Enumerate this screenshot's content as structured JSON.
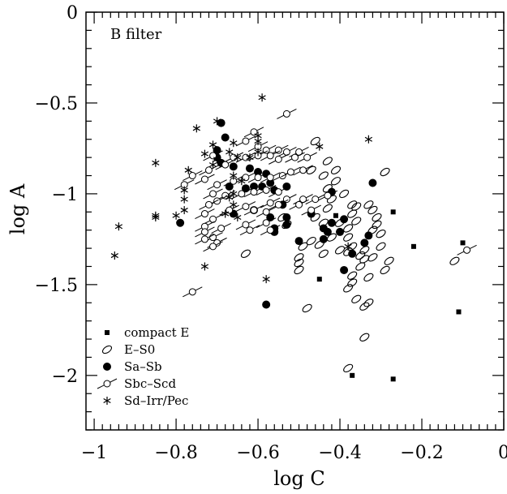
{
  "chart_data": {
    "type": "scatter",
    "title": "",
    "panel_label": "B filter",
    "xlabel": "log C",
    "ylabel": "log A",
    "xlim": [
      -1.02,
      0.0
    ],
    "ylim": [
      -2.3,
      0.0
    ],
    "xticks": [
      -1,
      -0.8,
      -0.6,
      -0.4,
      -0.2,
      0
    ],
    "xtick_labels": [
      "−1",
      "−0.8",
      "−0.6",
      "−0.4",
      "−0.2",
      "0"
    ],
    "yticks": [
      0,
      -0.5,
      -1,
      -1.5,
      -2
    ],
    "ytick_labels": [
      "0",
      "−0.5",
      "−1",
      "−1.5",
      "−2"
    ],
    "legend_position": "bottom-left",
    "series": [
      {
        "name": "compact E",
        "marker": "filled-square",
        "points": [
          [
            -0.27,
            -1.1
          ],
          [
            -0.22,
            -1.29
          ],
          [
            -0.1,
            -1.27
          ],
          [
            -0.11,
            -1.65
          ],
          [
            -0.27,
            -2.02
          ],
          [
            -0.37,
            -2.0
          ],
          [
            -0.45,
            -1.47
          ],
          [
            -0.41,
            -1.12
          ]
        ]
      },
      {
        "name": "E–S0",
        "marker": "open-ellipse",
        "points": [
          [
            -0.46,
            -0.71
          ],
          [
            -0.43,
            -0.82
          ],
          [
            -0.41,
            -0.87
          ],
          [
            -0.41,
            -0.93
          ],
          [
            -0.39,
            -1.0
          ],
          [
            -0.37,
            -1.06
          ],
          [
            -0.36,
            -1.07
          ],
          [
            -0.37,
            -1.11
          ],
          [
            -0.36,
            -1.15
          ],
          [
            -0.38,
            -1.19
          ],
          [
            -0.38,
            -1.24
          ],
          [
            -0.37,
            -1.29
          ],
          [
            -0.38,
            -1.32
          ],
          [
            -0.35,
            -1.34
          ],
          [
            -0.34,
            -1.36
          ],
          [
            -0.35,
            -1.4
          ],
          [
            -0.37,
            -1.45
          ],
          [
            -0.37,
            -1.49
          ],
          [
            -0.38,
            -1.52
          ],
          [
            -0.33,
            -1.06
          ],
          [
            -0.32,
            -1.09
          ],
          [
            -0.31,
            -1.13
          ],
          [
            -0.31,
            -1.17
          ],
          [
            -0.32,
            -1.2
          ],
          [
            -0.3,
            -1.22
          ],
          [
            -0.3,
            -1.29
          ],
          [
            -0.34,
            -1.31
          ],
          [
            -0.32,
            -1.35
          ],
          [
            -0.28,
            -1.37
          ],
          [
            -0.29,
            -1.42
          ],
          [
            -0.33,
            -1.46
          ],
          [
            -0.36,
            -1.58
          ],
          [
            -0.34,
            -1.62
          ],
          [
            -0.33,
            -1.6
          ],
          [
            -0.34,
            -1.79
          ],
          [
            -0.38,
            -1.96
          ],
          [
            -0.29,
            -0.88
          ],
          [
            -0.44,
            -0.9
          ],
          [
            -0.47,
            -0.87
          ],
          [
            -0.43,
            -0.97
          ],
          [
            -0.42,
            -1.03
          ],
          [
            -0.43,
            -1.08
          ],
          [
            -0.46,
            -1.13
          ],
          [
            -0.44,
            -1.16
          ],
          [
            -0.42,
            -1.24
          ],
          [
            -0.47,
            -1.26
          ],
          [
            -0.45,
            -1.28
          ],
          [
            -0.49,
            -1.29
          ],
          [
            -0.44,
            -1.33
          ],
          [
            -0.5,
            -1.35
          ],
          [
            -0.5,
            -1.38
          ],
          [
            -0.5,
            -1.42
          ],
          [
            -0.48,
            -1.63
          ],
          [
            -0.54,
            -1.13
          ],
          [
            -0.63,
            -1.33
          ],
          [
            -0.53,
            -1.17
          ],
          [
            -0.4,
            -1.16
          ],
          [
            -0.4,
            -1.31
          ],
          [
            -0.12,
            -1.37
          ]
        ]
      },
      {
        "name": "Sa–Sb",
        "marker": "filled-circle",
        "points": [
          [
            -0.69,
            -0.61
          ],
          [
            -0.68,
            -0.69
          ],
          [
            -0.7,
            -0.76
          ],
          [
            -0.7,
            -0.8
          ],
          [
            -0.69,
            -0.83
          ],
          [
            -0.66,
            -0.85
          ],
          [
            -0.62,
            -0.86
          ],
          [
            -0.6,
            -0.88
          ],
          [
            -0.58,
            -0.89
          ],
          [
            -0.57,
            -0.94
          ],
          [
            -0.61,
            -0.96
          ],
          [
            -0.59,
            -0.96
          ],
          [
            -0.53,
            -0.96
          ],
          [
            -0.56,
            -0.98
          ],
          [
            -0.67,
            -0.96
          ],
          [
            -0.63,
            -0.97
          ],
          [
            -0.42,
            -0.99
          ],
          [
            -0.57,
            -1.13
          ],
          [
            -0.56,
            -1.19
          ],
          [
            -0.56,
            -1.21
          ],
          [
            -0.53,
            -1.13
          ],
          [
            -0.47,
            -1.11
          ],
          [
            -0.42,
            -1.16
          ],
          [
            -0.44,
            -1.19
          ],
          [
            -0.43,
            -1.21
          ],
          [
            -0.5,
            -1.26
          ],
          [
            -0.53,
            -1.17
          ],
          [
            -0.39,
            -1.14
          ],
          [
            -0.4,
            -1.21
          ],
          [
            -0.37,
            -1.33
          ],
          [
            -0.33,
            -1.23
          ],
          [
            -0.34,
            -1.27
          ],
          [
            -0.39,
            -1.42
          ],
          [
            -0.44,
            -1.25
          ],
          [
            -0.58,
            -1.61
          ],
          [
            -0.79,
            -1.16
          ],
          [
            -0.32,
            -0.94
          ],
          [
            -0.66,
            -1.11
          ],
          [
            -0.61,
            -1.09
          ],
          [
            -0.54,
            -1.06
          ]
        ]
      },
      {
        "name": "Sbc–Scd",
        "marker": "open-circle-slash",
        "points": [
          [
            -0.53,
            -0.56
          ],
          [
            -0.61,
            -0.66
          ],
          [
            -0.63,
            -0.71
          ],
          [
            -0.6,
            -0.74
          ],
          [
            -0.58,
            -0.76
          ],
          [
            -0.55,
            -0.76
          ],
          [
            -0.53,
            -0.77
          ],
          [
            -0.5,
            -0.77
          ],
          [
            -0.71,
            -0.79
          ],
          [
            -0.66,
            -0.8
          ],
          [
            -0.63,
            -0.8
          ],
          [
            -0.6,
            -0.79
          ],
          [
            -0.57,
            -0.79
          ],
          [
            -0.55,
            -0.81
          ],
          [
            -0.51,
            -0.8
          ],
          [
            -0.48,
            -0.8
          ],
          [
            -0.68,
            -0.84
          ],
          [
            -0.72,
            -0.87
          ],
          [
            -0.76,
            -0.9
          ],
          [
            -0.73,
            -0.92
          ],
          [
            -0.78,
            -0.95
          ],
          [
            -0.7,
            -0.95
          ],
          [
            -0.66,
            -0.93
          ],
          [
            -0.63,
            -0.91
          ],
          [
            -0.6,
            -0.91
          ],
          [
            -0.57,
            -0.91
          ],
          [
            -0.54,
            -0.9
          ],
          [
            -0.52,
            -0.88
          ],
          [
            -0.49,
            -0.87
          ],
          [
            -0.71,
            -1.0
          ],
          [
            -0.68,
            -1.01
          ],
          [
            -0.64,
            -1.0
          ],
          [
            -0.61,
            -0.99
          ],
          [
            -0.58,
            -0.98
          ],
          [
            -0.55,
            -0.99
          ],
          [
            -0.53,
            -1.03
          ],
          [
            -0.49,
            -1.03
          ],
          [
            -0.46,
            -1.03
          ],
          [
            -0.43,
            -1.01
          ],
          [
            -0.7,
            -1.04
          ],
          [
            -0.72,
            -1.06
          ],
          [
            -0.73,
            -1.11
          ],
          [
            -0.71,
            -1.14
          ],
          [
            -0.73,
            -1.18
          ],
          [
            -0.69,
            -1.19
          ],
          [
            -0.73,
            -1.21
          ],
          [
            -0.71,
            -1.24
          ],
          [
            -0.73,
            -1.25
          ],
          [
            -0.7,
            -1.27
          ],
          [
            -0.71,
            -1.29
          ],
          [
            -0.67,
            -1.09
          ],
          [
            -0.63,
            -1.07
          ],
          [
            -0.57,
            -1.05
          ],
          [
            -0.55,
            -1.06
          ],
          [
            -0.5,
            -1.06
          ],
          [
            -0.47,
            -1.09
          ],
          [
            -0.63,
            -1.17
          ],
          [
            -0.58,
            -1.16
          ],
          [
            -0.62,
            -1.2
          ],
          [
            -0.57,
            -1.2
          ],
          [
            -0.61,
            -1.09
          ],
          [
            -0.58,
            -1.1
          ],
          [
            -0.76,
            -1.54
          ],
          [
            -0.09,
            -1.31
          ]
        ]
      },
      {
        "name": "Sd–Irr/Pec",
        "marker": "asterisk",
        "points": [
          [
            -0.59,
            -0.47
          ],
          [
            -0.75,
            -0.64
          ],
          [
            -0.6,
            -0.68
          ],
          [
            -0.6,
            -0.71
          ],
          [
            -0.71,
            -0.73
          ],
          [
            -0.66,
            -0.72
          ],
          [
            -0.67,
            -0.77
          ],
          [
            -0.6,
            -0.77
          ],
          [
            -0.73,
            -0.78
          ],
          [
            -0.7,
            -0.81
          ],
          [
            -0.65,
            -0.8
          ],
          [
            -0.62,
            -0.8
          ],
          [
            -0.85,
            -0.83
          ],
          [
            -0.77,
            -0.87
          ],
          [
            -0.71,
            -0.84
          ],
          [
            -0.66,
            -0.9
          ],
          [
            -0.64,
            -0.93
          ],
          [
            -0.78,
            -0.98
          ],
          [
            -0.78,
            -1.03
          ],
          [
            -0.78,
            -1.09
          ],
          [
            -0.66,
            -1.0
          ],
          [
            -0.67,
            -1.02
          ],
          [
            -0.66,
            -1.06
          ],
          [
            -0.68,
            -1.11
          ],
          [
            -0.65,
            -1.13
          ],
          [
            -0.8,
            -1.12
          ],
          [
            -0.85,
            -1.12
          ],
          [
            -0.85,
            -1.13
          ],
          [
            -0.94,
            -1.18
          ],
          [
            -0.95,
            -1.34
          ],
          [
            -0.73,
            -1.4
          ],
          [
            -0.58,
            -1.47
          ],
          [
            -0.33,
            -0.7
          ],
          [
            -0.45,
            -0.74
          ],
          [
            -0.38,
            -1.29
          ],
          [
            -0.7,
            -0.6
          ]
        ]
      }
    ]
  }
}
